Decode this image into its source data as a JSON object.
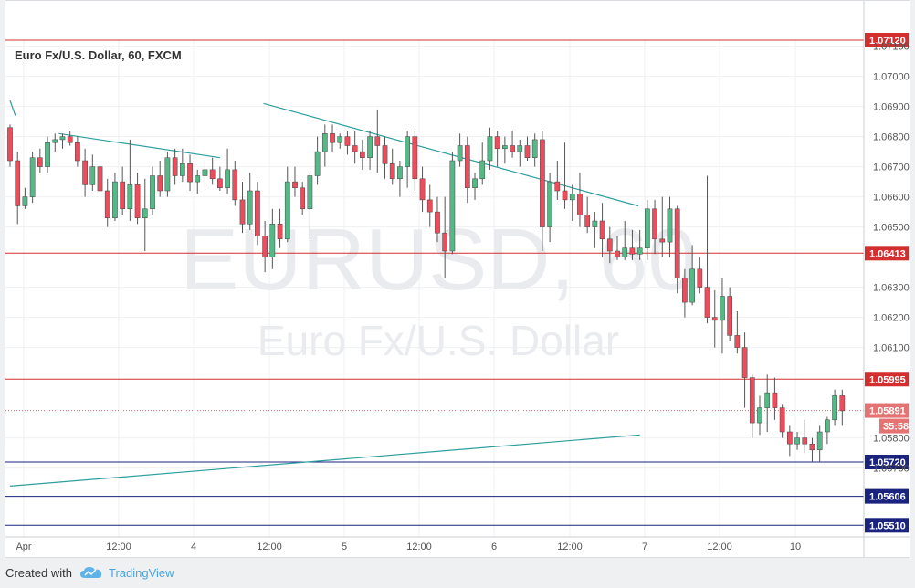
{
  "footer": {
    "created_with": "Created with",
    "brand": "TradingView"
  },
  "chart_data": {
    "type": "candlestick",
    "title": "Euro Fx/U.S. Dollar, 60, FXCM",
    "watermark_symbol": "EURUSD, 60",
    "watermark_name": "Euro Fx/U.S. Dollar",
    "y_range": [
      1.0546,
      1.0718
    ],
    "y_ticks": [
      "1.07100",
      "1.07000",
      "1.06900",
      "1.06800",
      "1.06700",
      "1.06600",
      "1.06500",
      "1.06300",
      "1.06200",
      "1.06100",
      "1.05800",
      "1.05700"
    ],
    "x_ticks": [
      "Apr",
      "12:00",
      "4",
      "12:00",
      "5",
      "12:00",
      "6",
      "12:00",
      "7",
      "12:00",
      "10"
    ],
    "horizontal_levels": [
      {
        "price": "1.07120",
        "color": "#d32f2f"
      },
      {
        "price": "1.06413",
        "color": "#d32f2f"
      },
      {
        "price": "1.05995",
        "color": "#d32f2f"
      },
      {
        "price": "1.05720",
        "color": "#1a237e"
      },
      {
        "price": "1.05606",
        "color": "#1a237e"
      },
      {
        "price": "1.05510",
        "color": "#1a237e"
      }
    ],
    "current_price": {
      "price": "1.05891",
      "countdown": "35:58",
      "color": "#e57373"
    },
    "colors": {
      "up": "#53b987",
      "down": "#eb4d5c",
      "trendline": "#2e9e9e",
      "grid": "#eef0f3"
    },
    "trendlines": [
      {
        "from": [
          0.0,
          1.0692
        ],
        "to": [
          0.7,
          1.0687
        ]
      },
      {
        "from": [
          6.5,
          1.0681
        ],
        "to": [
          28.0,
          1.0673
        ]
      },
      {
        "from": [
          33.8,
          1.0691
        ],
        "to": [
          83.8,
          1.0657
        ]
      },
      {
        "from": [
          0.0,
          1.0564
        ],
        "to": [
          84.0,
          1.0581
        ]
      }
    ],
    "candles": [
      [
        1.0683,
        1.0684,
        1.067,
        1.0672
      ],
      [
        1.0672,
        1.0675,
        1.0651,
        1.0657
      ],
      [
        1.0657,
        1.0663,
        1.0656,
        1.066
      ],
      [
        1.066,
        1.0675,
        1.0658,
        1.0673
      ],
      [
        1.0673,
        1.0676,
        1.0668,
        1.067
      ],
      [
        1.067,
        1.068,
        1.0668,
        1.0678
      ],
      [
        1.0678,
        1.0681,
        1.0675,
        1.0679
      ],
      [
        1.0679,
        1.0681,
        1.0676,
        1.068
      ],
      [
        1.068,
        1.0682,
        1.0677,
        1.0678
      ],
      [
        1.0678,
        1.068,
        1.067,
        1.0672
      ],
      [
        1.0672,
        1.0676,
        1.066,
        1.0664
      ],
      [
        1.0664,
        1.0674,
        1.0662,
        1.067
      ],
      [
        1.067,
        1.0672,
        1.066,
        1.0662
      ],
      [
        1.0662,
        1.0666,
        1.065,
        1.0653
      ],
      [
        1.0653,
        1.0668,
        1.0652,
        1.0665
      ],
      [
        1.0665,
        1.067,
        1.0654,
        1.0656
      ],
      [
        1.0656,
        1.0679,
        1.0652,
        1.0664
      ],
      [
        1.0664,
        1.0668,
        1.0651,
        1.0653
      ],
      [
        1.0653,
        1.0666,
        1.0642,
        1.0656
      ],
      [
        1.0656,
        1.067,
        1.0654,
        1.0667
      ],
      [
        1.0667,
        1.0672,
        1.066,
        1.0662
      ],
      [
        1.0662,
        1.0675,
        1.066,
        1.0673
      ],
      [
        1.0673,
        1.0676,
        1.0664,
        1.0667
      ],
      [
        1.0667,
        1.0676,
        1.0665,
        1.0671
      ],
      [
        1.0671,
        1.0674,
        1.0662,
        1.0665
      ],
      [
        1.0665,
        1.0669,
        1.0661,
        1.0667
      ],
      [
        1.0667,
        1.0672,
        1.0663,
        1.0669
      ],
      [
        1.0669,
        1.0673,
        1.0664,
        1.0666
      ],
      [
        1.0666,
        1.067,
        1.0662,
        1.0663
      ],
      [
        1.0663,
        1.0676,
        1.0661,
        1.0669
      ],
      [
        1.0669,
        1.0672,
        1.0657,
        1.0659
      ],
      [
        1.0659,
        1.0665,
        1.0648,
        1.0651
      ],
      [
        1.0651,
        1.0668,
        1.0649,
        1.0662
      ],
      [
        1.0662,
        1.0665,
        1.0644,
        1.0647
      ],
      [
        1.0647,
        1.0652,
        1.0635,
        1.064
      ],
      [
        1.064,
        1.0656,
        1.0636,
        1.0651
      ],
      [
        1.0651,
        1.0656,
        1.0643,
        1.0646
      ],
      [
        1.0646,
        1.067,
        1.0645,
        1.0665
      ],
      [
        1.0665,
        1.067,
        1.066,
        1.0663
      ],
      [
        1.0663,
        1.0665,
        1.0654,
        1.0656
      ],
      [
        1.0656,
        1.0668,
        1.0646,
        1.0667
      ],
      [
        1.0667,
        1.068,
        1.0664,
        1.0675
      ],
      [
        1.0675,
        1.0684,
        1.067,
        1.0681
      ],
      [
        1.0681,
        1.0684,
        1.0675,
        1.0678
      ],
      [
        1.0678,
        1.0681,
        1.0676,
        1.068
      ],
      [
        1.068,
        1.0682,
        1.0674,
        1.0677
      ],
      [
        1.0677,
        1.0682,
        1.0671,
        1.0675
      ],
      [
        1.0675,
        1.0679,
        1.0669,
        1.0673
      ],
      [
        1.0673,
        1.0682,
        1.0669,
        1.068
      ],
      [
        1.068,
        1.0689,
        1.0668,
        1.0677
      ],
      [
        1.0677,
        1.068,
        1.0666,
        1.0671
      ],
      [
        1.0671,
        1.0676,
        1.0664,
        1.0666
      ],
      [
        1.0666,
        1.0672,
        1.066,
        1.067
      ],
      [
        1.067,
        1.0682,
        1.0663,
        1.068
      ],
      [
        1.068,
        1.0682,
        1.0662,
        1.0666
      ],
      [
        1.0666,
        1.067,
        1.0655,
        1.0659
      ],
      [
        1.0659,
        1.0664,
        1.065,
        1.0655
      ],
      [
        1.0655,
        1.066,
        1.0645,
        1.0648
      ],
      [
        1.0648,
        1.066,
        1.0633,
        1.0642
      ],
      [
        1.0642,
        1.0675,
        1.0641,
        1.0672
      ],
      [
        1.0672,
        1.0681,
        1.067,
        1.0677
      ],
      [
        1.0677,
        1.068,
        1.0658,
        1.0663
      ],
      [
        1.0663,
        1.0668,
        1.0659,
        1.0666
      ],
      [
        1.0666,
        1.0678,
        1.0664,
        1.0672
      ],
      [
        1.0672,
        1.0683,
        1.0669,
        1.068
      ],
      [
        1.068,
        1.0682,
        1.067,
        1.0676
      ],
      [
        1.0676,
        1.068,
        1.0671,
        1.0677
      ],
      [
        1.0677,
        1.0682,
        1.0673,
        1.0675
      ],
      [
        1.0675,
        1.0679,
        1.067,
        1.0677
      ],
      [
        1.0677,
        1.068,
        1.0672,
        1.0673
      ],
      [
        1.0673,
        1.0681,
        1.067,
        1.0679
      ],
      [
        1.0679,
        1.0682,
        1.0642,
        1.065
      ],
      [
        1.065,
        1.0668,
        1.0645,
        1.0665
      ],
      [
        1.0665,
        1.0672,
        1.0659,
        1.0662
      ],
      [
        1.0662,
        1.0678,
        1.0656,
        1.0659
      ],
      [
        1.0659,
        1.0664,
        1.0652,
        1.0661
      ],
      [
        1.0661,
        1.0668,
        1.065,
        1.0654
      ],
      [
        1.0654,
        1.066,
        1.0648,
        1.065
      ],
      [
        1.065,
        1.0655,
        1.0643,
        1.0652
      ],
      [
        1.0652,
        1.0658,
        1.064,
        1.0646
      ],
      [
        1.0646,
        1.065,
        1.0638,
        1.0642
      ],
      [
        1.0642,
        1.0647,
        1.0639,
        1.064
      ],
      [
        1.064,
        1.0652,
        1.0639,
        1.0643
      ],
      [
        1.0643,
        1.0649,
        1.0639,
        1.0641
      ],
      [
        1.0641,
        1.0649,
        1.0639,
        1.0643
      ],
      [
        1.0643,
        1.0659,
        1.0639,
        1.0656
      ],
      [
        1.0656,
        1.0659,
        1.0641,
        1.0646
      ],
      [
        1.0646,
        1.066,
        1.064,
        1.0645
      ],
      [
        1.0645,
        1.066,
        1.064,
        1.0656
      ],
      [
        1.0656,
        1.0657,
        1.0628,
        1.0633
      ],
      [
        1.0633,
        1.0636,
        1.062,
        1.0625
      ],
      [
        1.0625,
        1.0644,
        1.0624,
        1.0636
      ],
      [
        1.0636,
        1.064,
        1.0628,
        1.063
      ],
      [
        1.063,
        1.0667,
        1.0618,
        1.062
      ],
      [
        1.062,
        1.0629,
        1.061,
        1.0619
      ],
      [
        1.0619,
        1.0633,
        1.0608,
        1.0627
      ],
      [
        1.0627,
        1.063,
        1.0612,
        1.0614
      ],
      [
        1.0614,
        1.0622,
        1.0608,
        1.061
      ],
      [
        1.061,
        1.0615,
        1.059,
        1.06
      ],
      [
        1.06,
        1.0601,
        1.058,
        1.0585
      ],
      [
        1.0585,
        1.0594,
        1.0581,
        1.059
      ],
      [
        1.059,
        1.0601,
        1.0582,
        1.0595
      ],
      [
        1.0595,
        1.06,
        1.0586,
        1.059
      ],
      [
        1.059,
        1.0591,
        1.058,
        1.0582
      ],
      [
        1.0582,
        1.0584,
        1.0574,
        1.0578
      ],
      [
        1.0578,
        1.0582,
        1.0576,
        1.058
      ],
      [
        1.058,
        1.0586,
        1.0575,
        1.0578
      ],
      [
        1.0578,
        1.058,
        1.0572,
        1.0576
      ],
      [
        1.0576,
        1.0584,
        1.0572,
        1.0582
      ],
      [
        1.0582,
        1.0587,
        1.0578,
        1.0586
      ],
      [
        1.0586,
        1.0596,
        1.0584,
        1.0594
      ],
      [
        1.0594,
        1.0596,
        1.0584,
        1.0589
      ]
    ]
  }
}
